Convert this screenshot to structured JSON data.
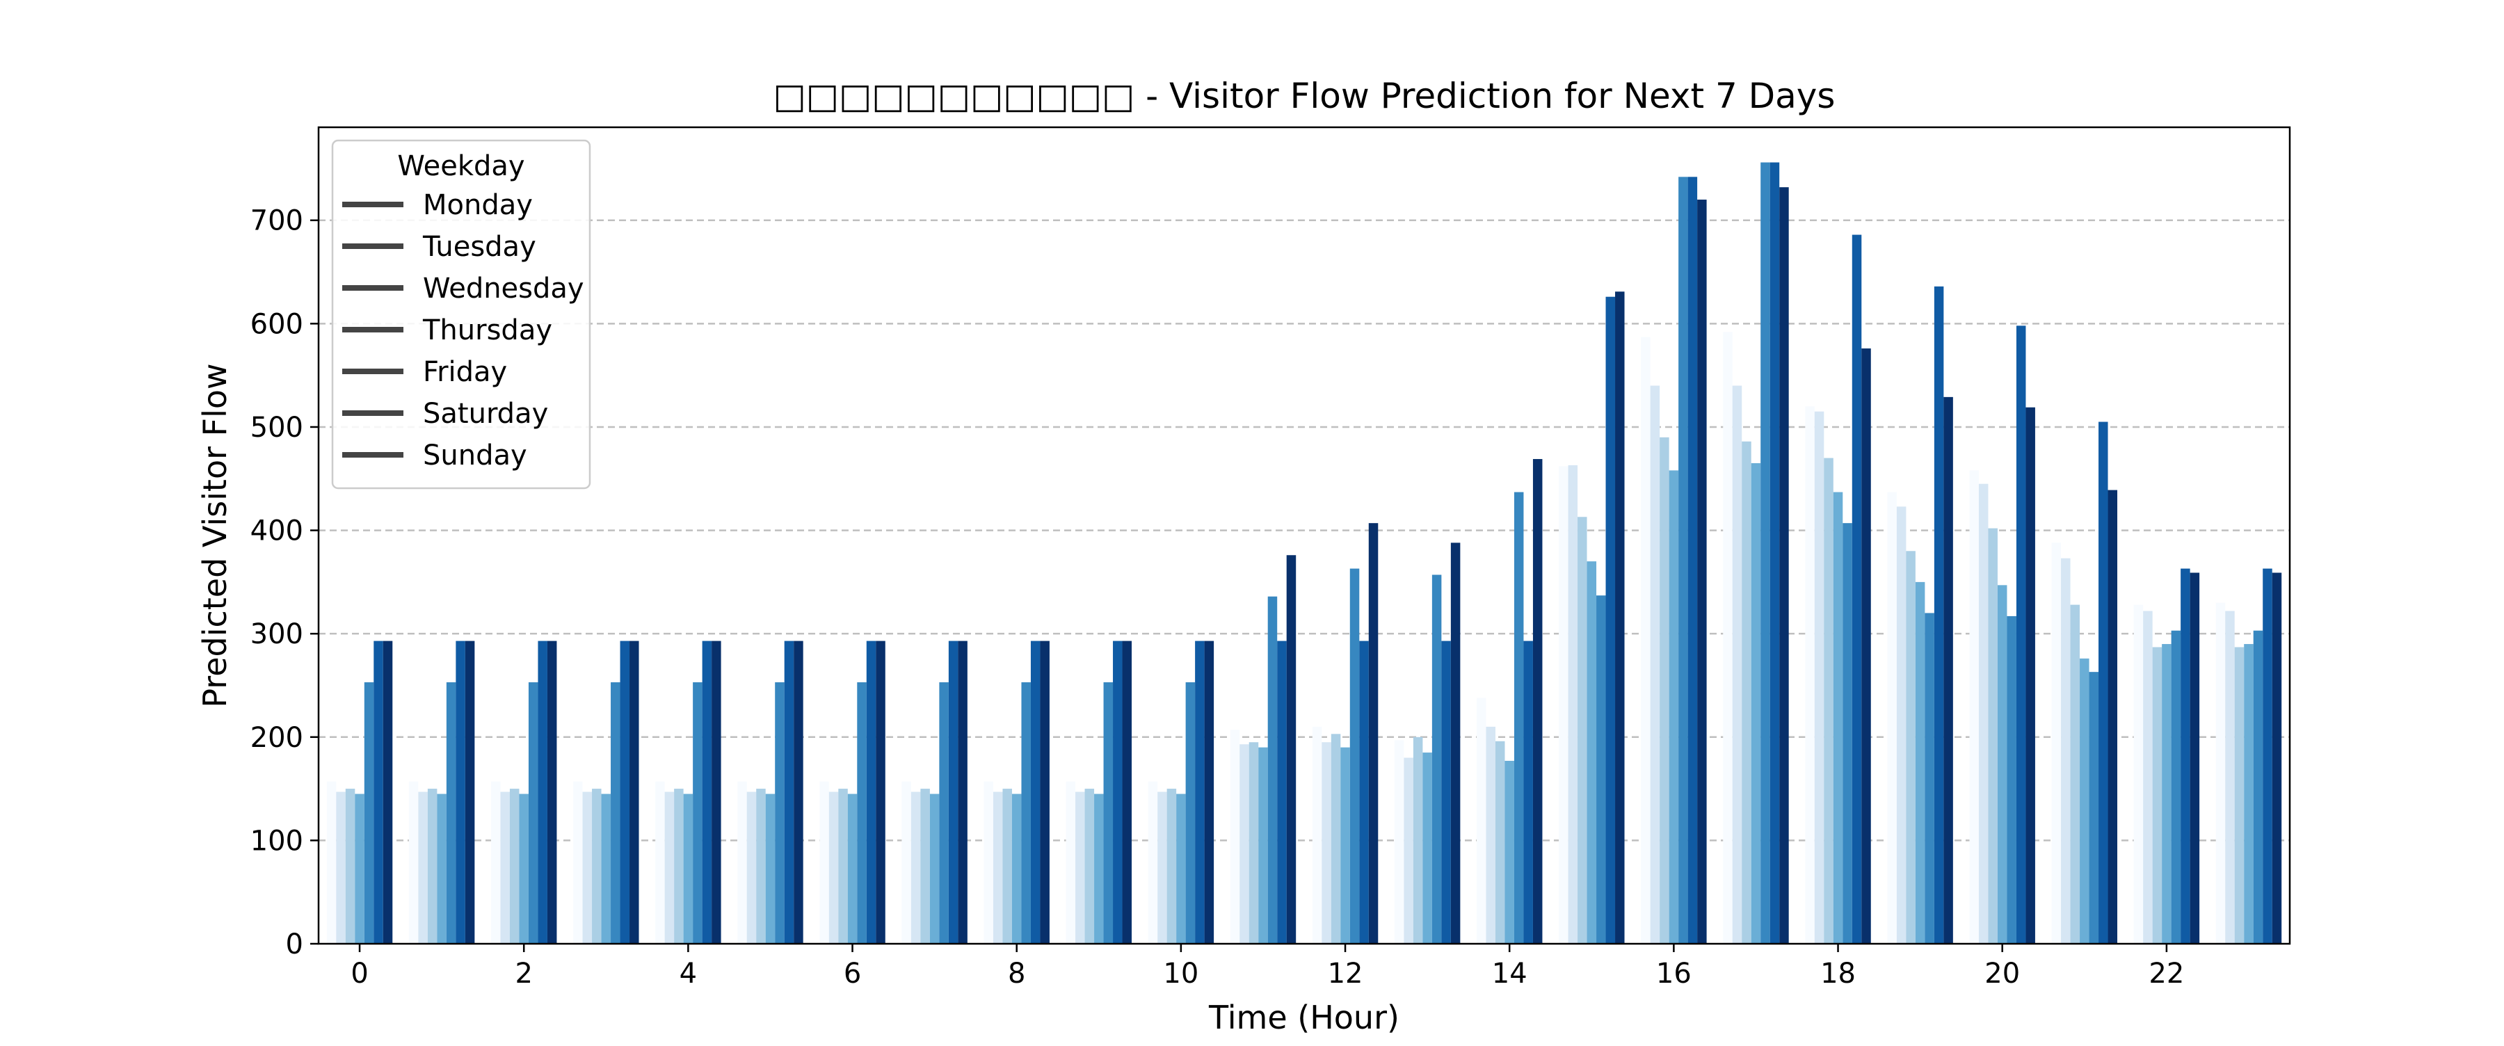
{
  "chart_data": {
    "type": "bar",
    "title": "□□□□□□□□□□□ - Visitor Flow Prediction for Next 7 Days",
    "xlabel": "Time (Hour)",
    "ylabel": "Predicted Visitor Flow",
    "ylim": [
      0,
      790
    ],
    "yticks": [
      0,
      100,
      200,
      300,
      400,
      500,
      600,
      700
    ],
    "xticks": [
      0,
      2,
      4,
      6,
      8,
      10,
      12,
      14,
      16,
      18,
      20,
      22
    ],
    "categories": [
      0,
      1,
      2,
      3,
      4,
      5,
      6,
      7,
      8,
      9,
      10,
      11,
      12,
      13,
      14,
      15,
      16,
      17,
      18,
      19,
      20,
      21,
      22,
      23
    ],
    "grid": "y, dashed",
    "legend": {
      "title": "Weekday",
      "placement": "top-left"
    },
    "series": [
      {
        "name": "Monday",
        "color": "#f7fbff",
        "values": [
          157,
          157,
          157,
          157,
          157,
          157,
          157,
          157,
          157,
          157,
          157,
          207,
          210,
          197,
          238,
          462,
          587,
          592,
          520,
          437,
          458,
          388,
          328,
          330
        ]
      },
      {
        "name": "Tuesday",
        "color": "#d6e6f4",
        "values": [
          147,
          147,
          147,
          147,
          147,
          147,
          147,
          147,
          147,
          147,
          147,
          193,
          195,
          180,
          210,
          463,
          540,
          540,
          515,
          423,
          445,
          373,
          322,
          322
        ]
      },
      {
        "name": "Wednesday",
        "color": "#abcfe5",
        "values": [
          150,
          150,
          150,
          150,
          150,
          150,
          150,
          150,
          150,
          150,
          150,
          195,
          203,
          200,
          196,
          413,
          490,
          486,
          470,
          380,
          402,
          328,
          287,
          287
        ]
      },
      {
        "name": "Thursday",
        "color": "#6aaed6",
        "values": [
          145,
          145,
          145,
          145,
          145,
          145,
          145,
          145,
          145,
          145,
          145,
          190,
          190,
          185,
          177,
          370,
          458,
          465,
          437,
          350,
          347,
          276,
          290,
          290
        ]
      },
      {
        "name": "Friday",
        "color": "#3787c0",
        "values": [
          253,
          253,
          253,
          253,
          253,
          253,
          253,
          253,
          253,
          253,
          253,
          336,
          363,
          357,
          437,
          337,
          742,
          756,
          407,
          320,
          317,
          263,
          303,
          303
        ]
      },
      {
        "name": "Saturday",
        "color": "#105ba4",
        "values": [
          293,
          293,
          293,
          293,
          293,
          293,
          293,
          293,
          293,
          293,
          293,
          293,
          293,
          293,
          293,
          626,
          742,
          756,
          686,
          636,
          598,
          505,
          363,
          363
        ]
      },
      {
        "name": "Sunday",
        "color": "#08306b",
        "values": [
          293,
          293,
          293,
          293,
          293,
          293,
          293,
          293,
          293,
          293,
          293,
          376,
          407,
          388,
          469,
          631,
          720,
          732,
          576,
          529,
          519,
          439,
          359,
          359
        ]
      }
    ]
  }
}
